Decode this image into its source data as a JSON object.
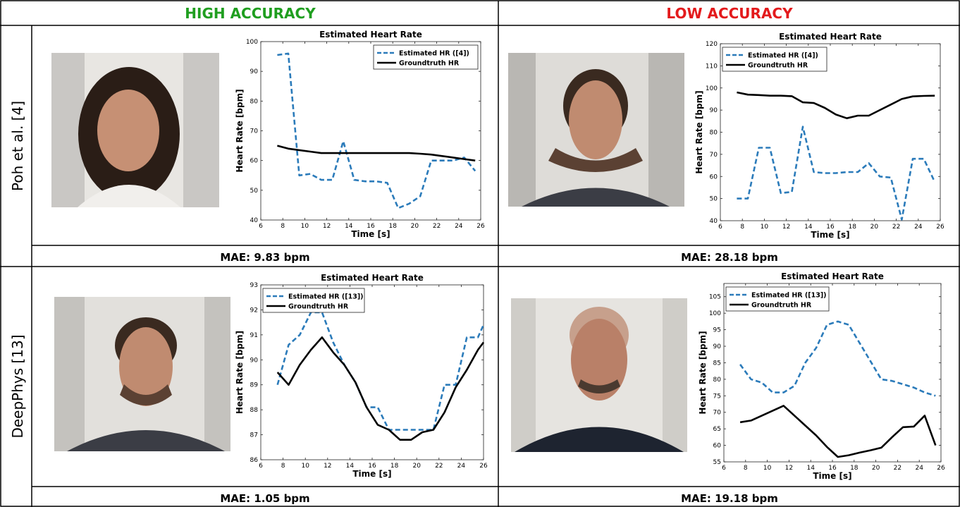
{
  "columns": [
    {
      "label": "HIGH ACCURACY",
      "color": "#1f9e1f"
    },
    {
      "label": "LOW ACCURACY",
      "color": "#e31a1c"
    }
  ],
  "rows": [
    {
      "label": "Poh et al. [4]"
    },
    {
      "label": "DeepPhys [13]"
    }
  ],
  "mae": [
    "MAE: 9.83 bpm",
    "MAE: 28.18 bpm",
    "MAE: 1.05 bpm",
    "MAE: 19.18 bpm"
  ],
  "chart_data": [
    {
      "type": "line",
      "title": "Estimated Heart Rate",
      "xlabel": "Time [s]",
      "ylabel": "Heart Rate [bpm]",
      "xlim": [
        6,
        26
      ],
      "ylim": [
        40,
        100
      ],
      "xticks": [
        6,
        8,
        10,
        12,
        14,
        16,
        18,
        20,
        22,
        24,
        26
      ],
      "yticks": [
        40,
        50,
        60,
        70,
        80,
        90,
        100
      ],
      "legend": "top-right",
      "series": [
        {
          "name": "Estimated HR ([4])",
          "style": "dashed",
          "color": "#2b7bba",
          "x": [
            7.5,
            8.5,
            9.5,
            10.5,
            11.5,
            12.5,
            13.5,
            14.5,
            15.5,
            16.5,
            17.5,
            18.5,
            19.5,
            20.5,
            21.5,
            22.5,
            23.5,
            24.5,
            25.5
          ],
          "y": [
            95.5,
            96,
            55,
            55.5,
            53.5,
            53.5,
            66.5,
            53.5,
            53,
            53,
            52.5,
            44,
            45.5,
            48,
            60,
            60,
            60,
            61,
            56.5
          ]
        },
        {
          "name": "Groundtruth HR",
          "style": "solid",
          "color": "#000000",
          "x": [
            7.5,
            8.5,
            9.5,
            10.5,
            11.5,
            12.5,
            13.5,
            14.5,
            15.5,
            16.5,
            17.5,
            18.5,
            19.5,
            20.5,
            21.5,
            22.5,
            23.5,
            24.5,
            25.5
          ],
          "y": [
            65,
            64,
            63.5,
            63,
            62.5,
            62.5,
            62.5,
            62.5,
            62.5,
            62.5,
            62.5,
            62.5,
            62.5,
            62.3,
            62,
            61.5,
            61,
            60.5,
            60
          ]
        }
      ]
    },
    {
      "type": "line",
      "title": "Estimated Heart Rate",
      "xlabel": "Time [s]",
      "ylabel": "Heart Rate [bpm]",
      "xlim": [
        6,
        26
      ],
      "ylim": [
        40,
        120
      ],
      "xticks": [
        6,
        8,
        10,
        12,
        14,
        16,
        18,
        20,
        22,
        24,
        26
      ],
      "yticks": [
        40,
        50,
        60,
        70,
        80,
        90,
        100,
        110,
        120
      ],
      "legend": "top-left",
      "series": [
        {
          "name": "Estimated HR ([4])",
          "style": "dashed",
          "color": "#2b7bba",
          "x": [
            7.5,
            8.5,
            9.5,
            10.5,
            11.5,
            12.5,
            13.5,
            14.5,
            15.5,
            16.5,
            17.5,
            18.5,
            19.5,
            20.5,
            21.5,
            22.5,
            23.5,
            24.5,
            25.5
          ],
          "y": [
            50,
            50,
            73,
            73,
            52.5,
            53,
            82.5,
            62,
            61.5,
            61.5,
            62,
            62,
            66,
            60,
            59.5,
            40.5,
            68,
            68,
            57.5
          ]
        },
        {
          "name": "Groundtruth HR",
          "style": "solid",
          "color": "#000000",
          "x": [
            7.5,
            8.5,
            9.5,
            10.5,
            11.5,
            12.5,
            13.5,
            14.5,
            15.5,
            16.5,
            17.5,
            18.5,
            19.5,
            20.5,
            21.5,
            22.5,
            23.5,
            24.5,
            25.5
          ],
          "y": [
            98,
            97,
            96.8,
            96.5,
            96.5,
            96.3,
            93.5,
            93.2,
            91,
            88,
            86.3,
            87.5,
            87.5,
            90,
            92.5,
            95,
            96.2,
            96.4,
            96.5
          ]
        }
      ]
    },
    {
      "type": "line",
      "title": "Estimated Heart Rate",
      "xlabel": "Time [s]",
      "ylabel": "Heart Rate [bpm]",
      "xlim": [
        6,
        26
      ],
      "ylim": [
        86,
        93
      ],
      "xticks": [
        6,
        8,
        10,
        12,
        14,
        16,
        18,
        20,
        22,
        24,
        26
      ],
      "yticks": [
        86,
        87,
        88,
        89,
        90,
        91,
        92,
        93
      ],
      "legend": "top-left",
      "series": [
        {
          "name": "Estimated HR ([13])",
          "style": "dashed",
          "color": "#2b7bba",
          "x": [
            7.5,
            8.5,
            9.5,
            10.5,
            11.5,
            12.5,
            13.5,
            14.5,
            15.5,
            16.5,
            17.5,
            18.5,
            19.5,
            20.5,
            21.5,
            22.5,
            23.5,
            24.5,
            25.5,
            26
          ],
          "y": [
            89,
            90.6,
            91,
            91.9,
            91.9,
            90.7,
            89.8,
            89.1,
            88.1,
            88.1,
            87.2,
            87.2,
            87.2,
            87.2,
            87.2,
            89,
            89,
            90.9,
            90.9,
            91.4
          ]
        },
        {
          "name": "Groundtruth HR",
          "style": "solid",
          "color": "#000000",
          "x": [
            7.5,
            8.5,
            9.5,
            10.5,
            11.5,
            12.5,
            13.5,
            14.5,
            15.5,
            16.5,
            17.5,
            18.5,
            19.5,
            20.5,
            21.5,
            22.5,
            23.5,
            24.5,
            25.5,
            26
          ],
          "y": [
            89.5,
            89,
            89.8,
            90.4,
            90.9,
            90.3,
            89.8,
            89.1,
            88.1,
            87.4,
            87.2,
            86.8,
            86.8,
            87.1,
            87.2,
            87.9,
            88.9,
            89.6,
            90.4,
            90.7
          ]
        }
      ]
    },
    {
      "type": "line",
      "title": "Estimated Heart Rate",
      "xlabel": "Time [s]",
      "ylabel": "Heart Rate [bpm]",
      "xlim": [
        6,
        26
      ],
      "ylim": [
        55,
        109
      ],
      "xticks": [
        6,
        8,
        10,
        12,
        14,
        16,
        18,
        20,
        22,
        24,
        26
      ],
      "yticks": [
        55,
        60,
        65,
        70,
        75,
        80,
        85,
        90,
        95,
        100,
        105
      ],
      "legend": "top-left",
      "series": [
        {
          "name": "Estimated HR ([13])",
          "style": "dashed",
          "color": "#2b7bba",
          "x": [
            7.5,
            8.5,
            9.5,
            10.5,
            11.5,
            12.5,
            13.5,
            14.5,
            15.5,
            16.5,
            17.5,
            18.5,
            19.5,
            20.5,
            21.5,
            22.5,
            23.5,
            24.5,
            25.5
          ],
          "y": [
            84.5,
            80,
            79,
            76,
            76,
            78,
            85,
            89.5,
            96.5,
            97.5,
            96.5,
            91,
            85.5,
            80,
            79.5,
            78.5,
            77.5,
            76,
            75
          ]
        },
        {
          "name": "Groundtruth HR",
          "style": "solid",
          "color": "#000000",
          "x": [
            7.5,
            8.5,
            9.5,
            10.5,
            11.5,
            12.5,
            13.5,
            14.5,
            15.5,
            16.5,
            17.5,
            18.5,
            19.5,
            20.5,
            21.5,
            22.5,
            23.5,
            24.5,
            25.5
          ],
          "y": [
            67,
            67.5,
            69,
            70.5,
            72,
            69,
            66,
            63,
            59.5,
            56.5,
            57,
            57.8,
            58.5,
            59.3,
            62.5,
            65.5,
            65.7,
            69,
            60
          ]
        }
      ]
    }
  ]
}
